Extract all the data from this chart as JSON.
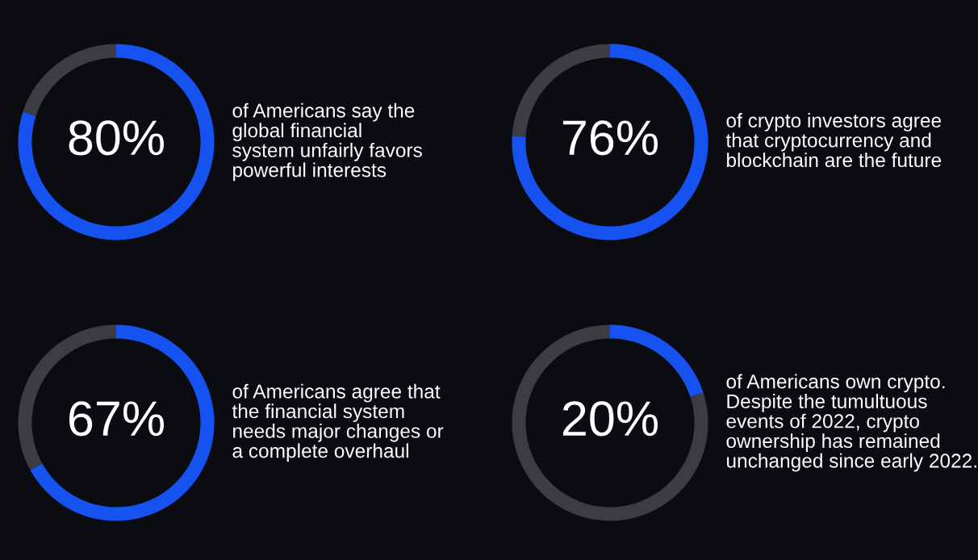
{
  "chart_data": [
    {
      "type": "donut",
      "categories": [
        null,
        null
      ],
      "values": [
        80,
        20
      ],
      "colors": [
        "#1652f0",
        "#3c3d42"
      ],
      "value_labels": [
        "80%",
        null
      ],
      "annotations": [
        "of Americans say the\nglobal financial\nsystem unfairly favors\npowerful interests"
      ]
    },
    {
      "type": "donut",
      "categories": [
        null,
        null
      ],
      "values": [
        76,
        24
      ],
      "colors": [
        "#1652f0",
        "#3c3d42"
      ],
      "value_labels": [
        "76%",
        null
      ],
      "annotations": [
        "of crypto investors agree\nthat cryptocurrency and\nblockchain are the future"
      ]
    },
    {
      "type": "donut",
      "categories": [
        null,
        null
      ],
      "values": [
        67,
        33
      ],
      "colors": [
        "#1652f0",
        "#3c3d42"
      ],
      "value_labels": [
        "67%",
        null
      ],
      "annotations": [
        "of Americans agree that\nthe financial system\nneeds major changes or\na complete overhaul"
      ]
    },
    {
      "type": "donut",
      "categories": [
        null,
        null
      ],
      "values": [
        20,
        80
      ],
      "colors": [
        "#1652f0",
        "#3c3d42"
      ],
      "value_labels": [
        "20%",
        null
      ],
      "annotations": [
        "of Americans own crypto.\nDespite the tumultuous\nevents of 2022, crypto\nownership has remained\nunchanged since early 2022."
      ]
    }
  ]
}
